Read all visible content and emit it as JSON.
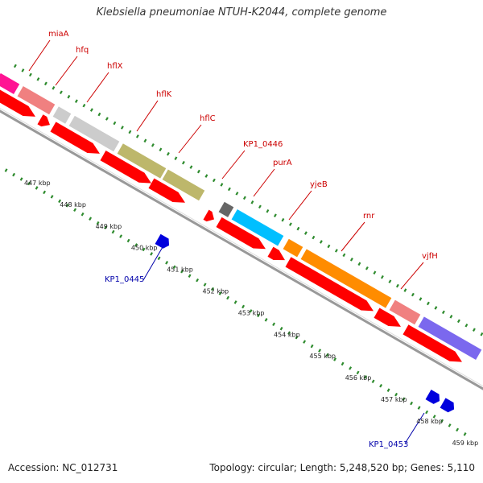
{
  "title": "Klebsiella pneumoniae NTUH-K2044, complete genome",
  "footer": {
    "accession": "Accession: NC_012731",
    "topology": "Topology: circular; Length: 5,248,520 bp; Genes: 5,110"
  },
  "colors": {
    "backbone": "#999999",
    "forward_cds": "#ff0000",
    "reverse_cds": "#0000dd",
    "forward_label": "#cc0000",
    "reverse_label": "#0000aa",
    "tick_dots": "#2e8b2e"
  },
  "features": [
    {
      "name": "",
      "color": "#ff1493"
    },
    {
      "name": "miaA",
      "color": "#f08080"
    },
    {
      "name": "hfq",
      "color": "#cccccc"
    },
    {
      "name": "hflX",
      "color": "#cccccc"
    },
    {
      "name": "hflK",
      "color": "#bdb76b"
    },
    {
      "name": "hflC",
      "color": "#bdb76b"
    },
    {
      "name": "KP1_0446",
      "color": "#666666"
    },
    {
      "name": "purA",
      "color": "#00bfff"
    },
    {
      "name": "yjeB",
      "color": "#ff8c00"
    },
    {
      "name": "rnr",
      "color": "#ff8c00"
    },
    {
      "name": "vjfH",
      "color": "#f08080"
    },
    {
      "name": "",
      "color": "#7b68ee"
    }
  ],
  "reverse_genes": [
    {
      "name": "KP1_0445"
    },
    {
      "name": "KP1_0453"
    }
  ],
  "kbp_labels": [
    "447 kbp",
    "448 kbp",
    "449 kbp",
    "450 kbp",
    "451 kbp",
    "452 kbp",
    "453 kbp",
    "454 kbp",
    "455 kbp",
    "456 kbp",
    "457 kbp",
    "458 kbp",
    "459 kbp"
  ]
}
